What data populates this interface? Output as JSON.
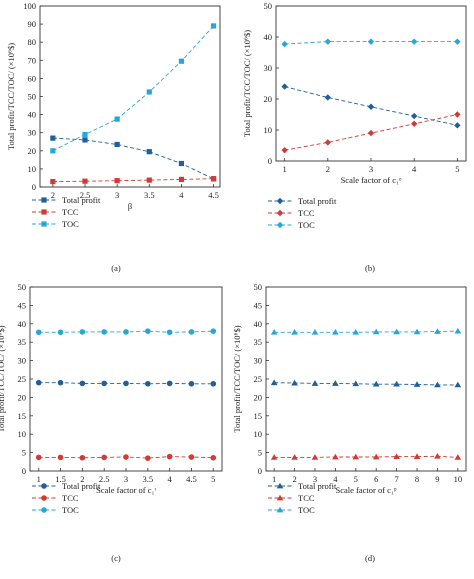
{
  "chart_data": [
    {
      "type": "line",
      "caption": "(a)",
      "xlabel": "β",
      "ylabel": "Total profit/TCC/TOC/ (×10⁶$)",
      "xlim": [
        1.8,
        4.6
      ],
      "ylim": [
        0,
        100
      ],
      "x_ticks": [
        2,
        2.5,
        3,
        3.5,
        4,
        4.5
      ],
      "x_tick_labels": [
        "2",
        "2.5",
        "3",
        "3.5",
        "4",
        "4.5"
      ],
      "y_ticks": [
        0,
        10,
        20,
        30,
        40,
        50,
        60,
        70,
        80,
        90,
        100
      ],
      "y_tick_labels": [
        "0",
        "10",
        "20",
        "30",
        "40",
        "50",
        "60",
        "70",
        "80",
        "90",
        "100"
      ],
      "x": [
        2,
        2.5,
        3,
        3.5,
        4,
        4.5
      ],
      "series": [
        {
          "name": "Total profit",
          "color": "#1f5f9c",
          "marker": "square",
          "values": [
            27,
            26,
            23.5,
            19.5,
            13,
            4.5
          ]
        },
        {
          "name": "TCC",
          "color": "#d23a33",
          "marker": "square",
          "values": [
            3,
            3.2,
            3.5,
            3.8,
            4.2,
            4.6
          ]
        },
        {
          "name": "TOC",
          "color": "#27a6d9",
          "marker": "square",
          "values": [
            20,
            29,
            37.5,
            52.5,
            69.5,
            89
          ]
        }
      ]
    },
    {
      "type": "line",
      "caption": "(b)",
      "xlabel": "Scale factor of c₁ᵒ",
      "ylabel": "Total profit/TCC/TOC/ (×10⁶$)",
      "xlim": [
        0.8,
        5.2
      ],
      "ylim": [
        0,
        50
      ],
      "x_ticks": [
        1,
        2,
        3,
        4,
        5
      ],
      "x_tick_labels": [
        "1",
        "2",
        "3",
        "4",
        "5"
      ],
      "y_ticks": [
        0,
        10,
        20,
        30,
        40,
        50
      ],
      "y_tick_labels": [
        "0",
        "10",
        "20",
        "30",
        "40",
        "50"
      ],
      "x": [
        1,
        2,
        3,
        4,
        5
      ],
      "series": [
        {
          "name": "Total profit",
          "color": "#1f5f9c",
          "marker": "diamond",
          "values": [
            24,
            20.5,
            17.5,
            14.5,
            11.5
          ]
        },
        {
          "name": "TCC",
          "color": "#d23a33",
          "marker": "diamond",
          "values": [
            3.5,
            6,
            9,
            12,
            15
          ]
        },
        {
          "name": "TOC",
          "color": "#27a6d9",
          "marker": "diamond",
          "values": [
            37.7,
            38.5,
            38.5,
            38.5,
            38.5
          ]
        }
      ]
    },
    {
      "type": "line",
      "caption": "(c)",
      "xlabel": "Scale factor of c₁ᶦ",
      "ylabel": "Total profit/TCC/TOC/ (×10⁶$)",
      "xlim": [
        0.8,
        5.2
      ],
      "ylim": [
        0,
        50
      ],
      "x_ticks": [
        1,
        1.5,
        2,
        2.5,
        3,
        3.5,
        4,
        4.5,
        5
      ],
      "x_tick_labels": [
        "1",
        "1.5",
        "2",
        "2.5",
        "3",
        "3.5",
        "4",
        "4.5",
        "5"
      ],
      "y_ticks": [
        0,
        5,
        10,
        15,
        20,
        25,
        30,
        35,
        40,
        45,
        50
      ],
      "y_tick_labels": [
        "0",
        "5",
        "10",
        "15",
        "20",
        "25",
        "30",
        "35",
        "40",
        "45",
        "50"
      ],
      "x": [
        1,
        1.5,
        2,
        2.5,
        3,
        3.5,
        4,
        4.5,
        5
      ],
      "series": [
        {
          "name": "Total profit",
          "color": "#1f5f9c",
          "marker": "circle",
          "values": [
            24,
            24,
            23.8,
            23.8,
            23.8,
            23.7,
            23.8,
            23.7,
            23.7
          ]
        },
        {
          "name": "TCC",
          "color": "#d23a33",
          "marker": "circle",
          "values": [
            3.7,
            3.7,
            3.6,
            3.7,
            3.8,
            3.5,
            3.9,
            3.8,
            3.6
          ]
        },
        {
          "name": "TOC",
          "color": "#27a6d9",
          "marker": "circle",
          "values": [
            37.7,
            37.7,
            37.8,
            37.8,
            37.8,
            38,
            37.7,
            37.8,
            38
          ]
        }
      ]
    },
    {
      "type": "line",
      "caption": "(d)",
      "xlabel": "Scale factor of c₁ᵖ",
      "ylabel": "Total profit/TCC/TOC/ (×10⁶$)",
      "xlim": [
        0.6,
        10.4
      ],
      "ylim": [
        0,
        50
      ],
      "x_ticks": [
        1,
        2,
        3,
        4,
        5,
        6,
        7,
        8,
        9,
        10
      ],
      "x_tick_labels": [
        "1",
        "2",
        "3",
        "4",
        "5",
        "6",
        "7",
        "8",
        "9",
        "10"
      ],
      "y_ticks": [
        0,
        5,
        10,
        15,
        20,
        25,
        30,
        35,
        40,
        45,
        50
      ],
      "y_tick_labels": [
        "0",
        "5",
        "10",
        "15",
        "20",
        "25",
        "30",
        "35",
        "40",
        "45",
        "50"
      ],
      "x": [
        1,
        2,
        3,
        4,
        5,
        6,
        7,
        8,
        9,
        10
      ],
      "series": [
        {
          "name": "Total profit",
          "color": "#1f5f9c",
          "marker": "triangle",
          "values": [
            24,
            23.9,
            23.8,
            23.8,
            23.7,
            23.6,
            23.6,
            23.5,
            23.4,
            23.4
          ]
        },
        {
          "name": "TCC",
          "color": "#d23a33",
          "marker": "triangle",
          "values": [
            3.7,
            3.7,
            3.7,
            3.8,
            3.8,
            3.8,
            3.9,
            3.9,
            4,
            3.7
          ]
        },
        {
          "name": "TOC",
          "color": "#27a6d9",
          "marker": "triangle",
          "values": [
            37.7,
            37.7,
            37.7,
            37.7,
            37.7,
            37.8,
            37.8,
            37.8,
            37.9,
            38
          ]
        }
      ]
    }
  ]
}
